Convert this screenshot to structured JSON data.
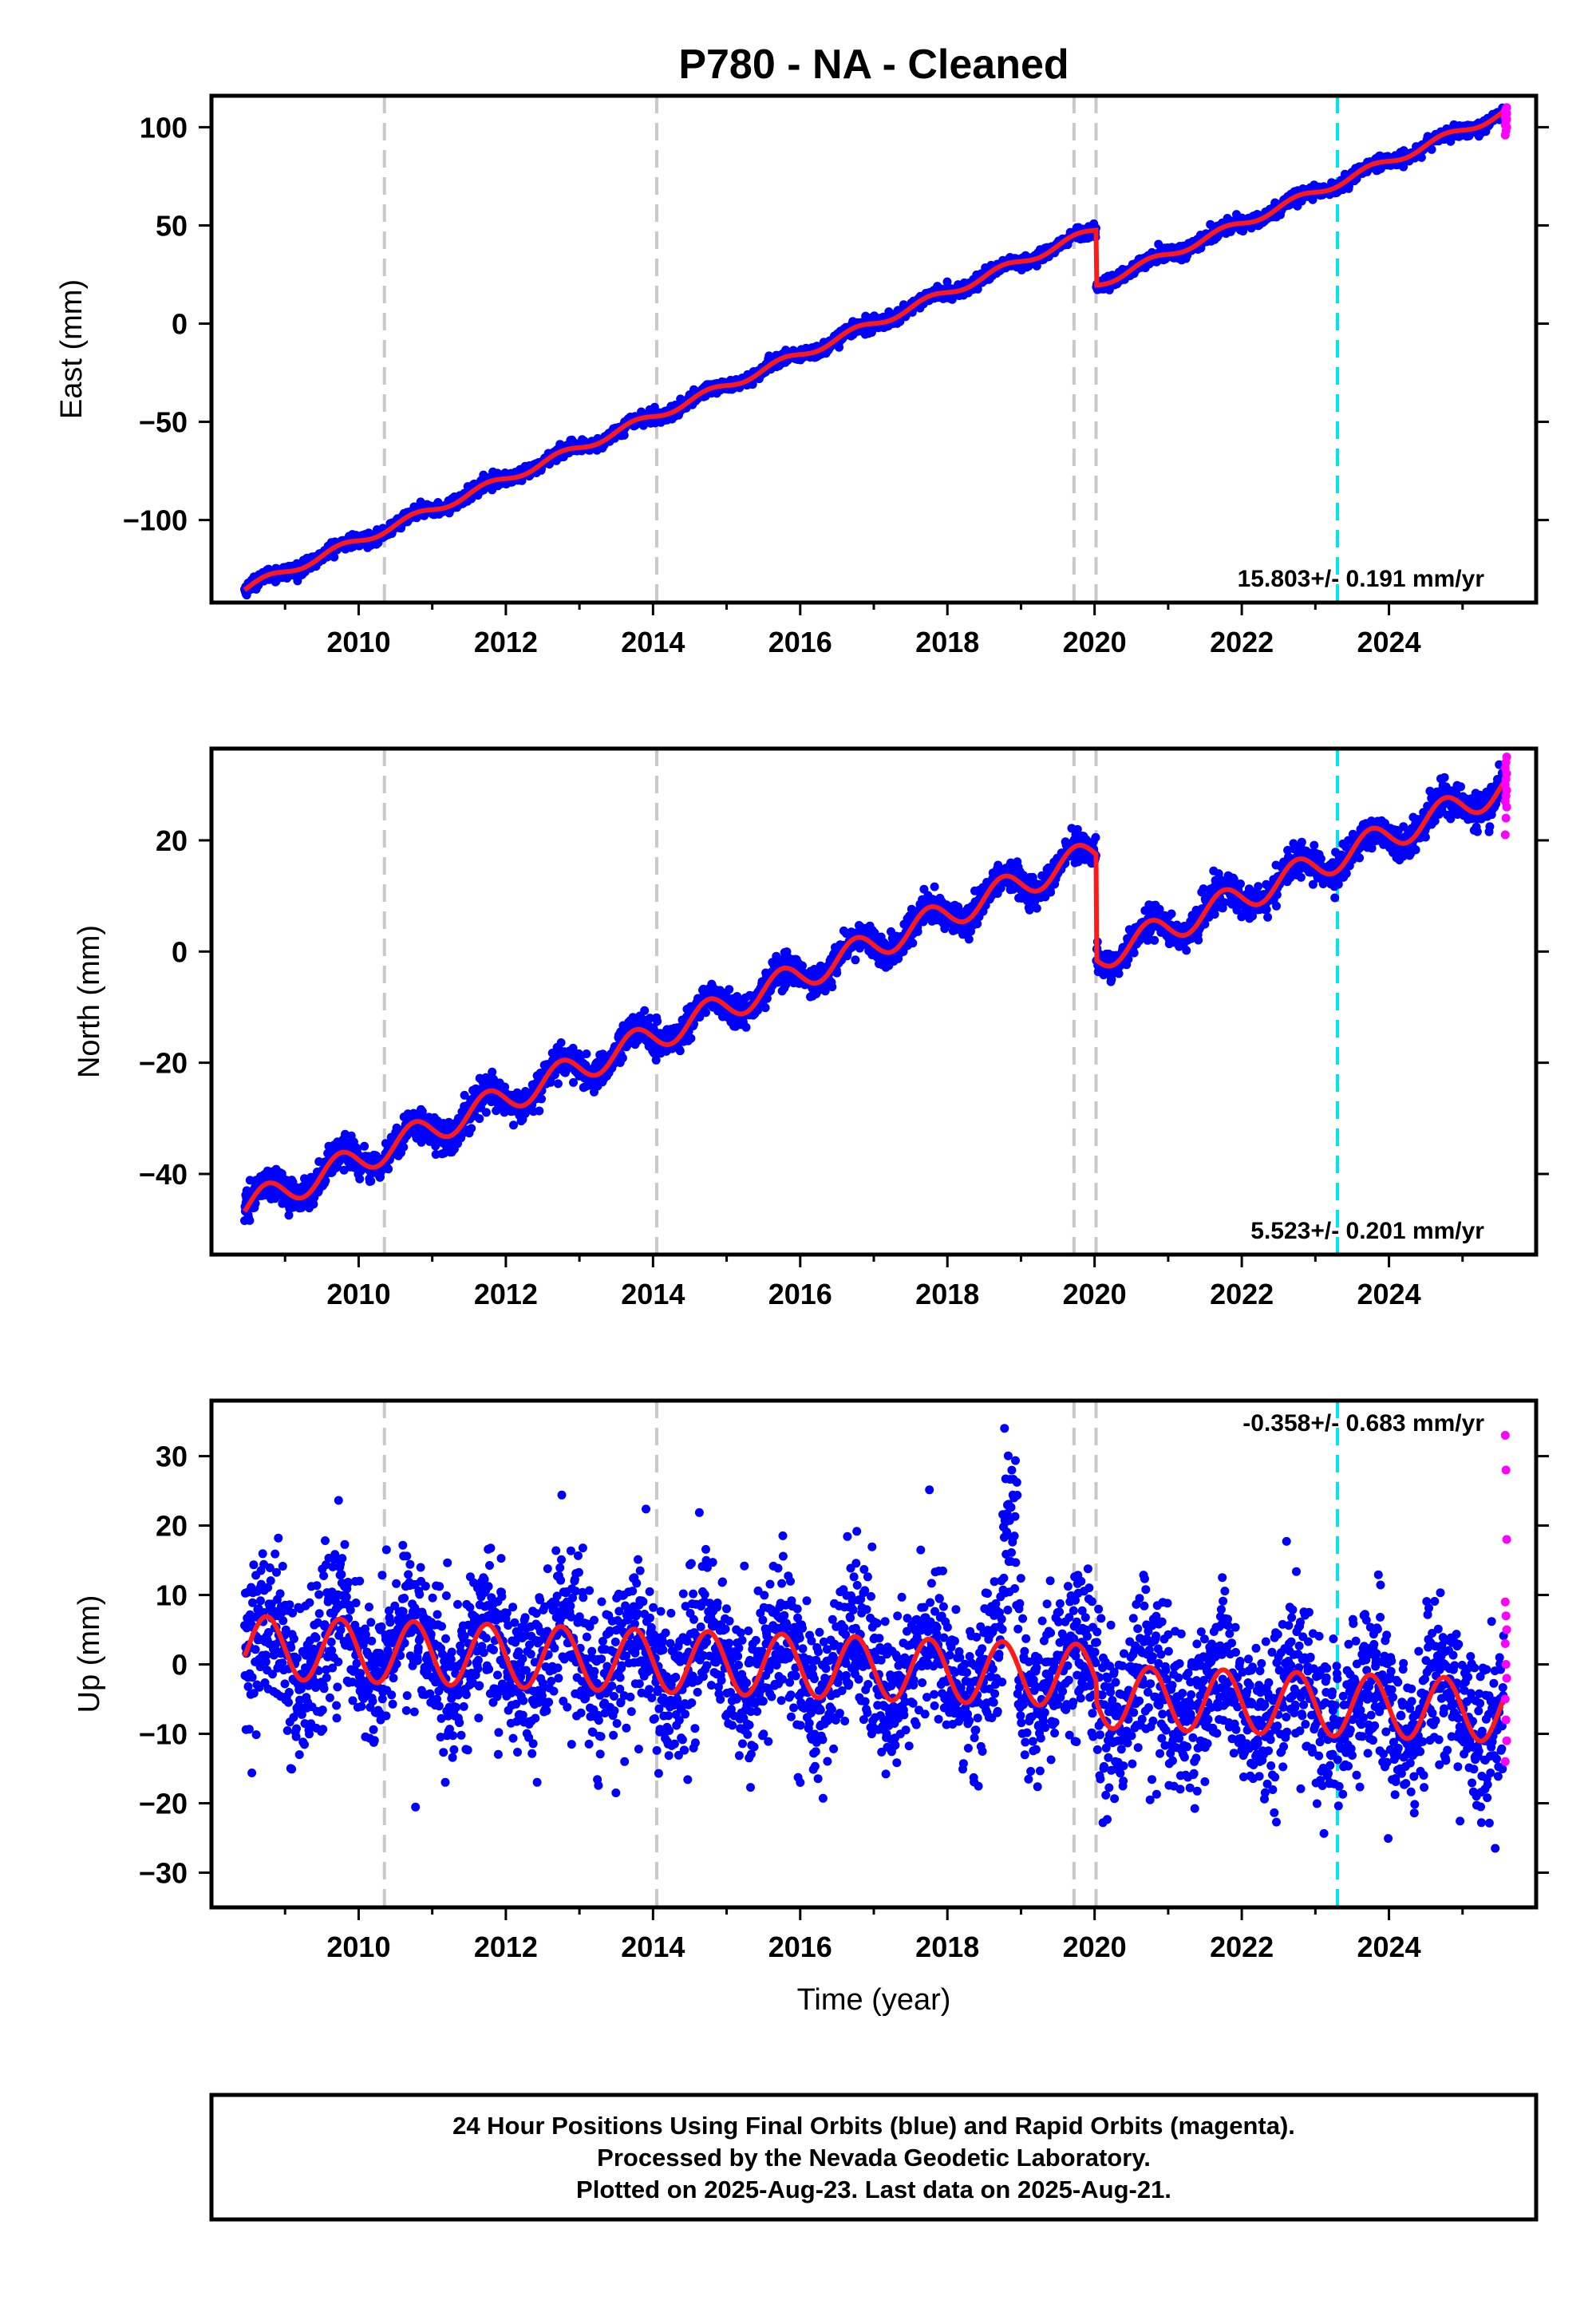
{
  "title": "P780  - NA - Cleaned",
  "x_axis_label": "Time (year)",
  "colors": {
    "final_orbits": "#0000ff",
    "rapid_orbits": "#ff00ff",
    "model": "#ff1a1a",
    "equipment_change": "#c8c8c8",
    "other_event": "#00e5ee"
  },
  "footer": {
    "line1": "24 Hour Positions Using Final Orbits (blue) and Rapid Orbits (magenta).",
    "line2": "Processed by the Nevada Geodetic Laboratory.",
    "line3": "Plotted on 2025-Aug-23. Last data on 2025-Aug-21."
  },
  "chart_data": [
    {
      "type": "scatter",
      "component": "East",
      "ylabel": "East (mm)",
      "xlim": [
        2008.0,
        2026.0
      ],
      "ylim": [
        -142,
        116
      ],
      "xticks": [
        2010,
        2012,
        2014,
        2016,
        2018,
        2020,
        2022,
        2024
      ],
      "yticks": [
        -100,
        -50,
        0,
        50,
        100
      ],
      "rate_label": "15.803+/- 0.191 mm/yr",
      "vertical_lines": [
        {
          "x": 2010.35,
          "kind": "equipment_change"
        },
        {
          "x": 2014.05,
          "kind": "equipment_change"
        },
        {
          "x": 2019.72,
          "kind": "equipment_change"
        },
        {
          "x": 2020.02,
          "kind": "equipment_change"
        },
        {
          "x": 2023.3,
          "kind": "other_event"
        }
      ],
      "series": [
        {
          "kind": "trend",
          "start_x": 2008.45,
          "start_y": -135,
          "rate": 15.8,
          "seasonal_amp": 2,
          "noise": 1.6,
          "offsets": [
            {
              "x": 2020.02,
              "dy": -28
            }
          ],
          "end_x": 2025.56
        }
      ],
      "rapid_points": [
        96,
        98,
        100,
        101,
        103,
        104,
        105,
        106,
        107,
        108,
        109,
        110
      ]
    },
    {
      "type": "scatter",
      "component": "North",
      "ylabel": "North (mm)",
      "xlim": [
        2008.0,
        2026.0
      ],
      "ylim": [
        -54.5,
        36.5
      ],
      "xticks": [
        2010,
        2012,
        2014,
        2016,
        2018,
        2020,
        2022,
        2024
      ],
      "yticks": [
        -40,
        -20,
        0,
        20
      ],
      "rate_label": "5.523+/- 0.201 mm/yr",
      "vertical_lines": [
        {
          "x": 2010.35,
          "kind": "equipment_change"
        },
        {
          "x": 2014.05,
          "kind": "equipment_change"
        },
        {
          "x": 2019.72,
          "kind": "equipment_change"
        },
        {
          "x": 2020.02,
          "kind": "equipment_change"
        },
        {
          "x": 2023.3,
          "kind": "other_event"
        }
      ],
      "series": [
        {
          "kind": "trend",
          "start_x": 2008.45,
          "start_y": -46,
          "rate": 5.52,
          "seasonal_amp": 2.6,
          "noise": 1.4,
          "offsets": [
            {
              "x": 2020.02,
              "dy": -19
            }
          ],
          "end_x": 2025.56
        }
      ],
      "rapid_points": [
        21,
        24,
        26,
        27,
        28,
        29,
        30,
        31,
        32,
        33,
        34,
        35
      ]
    },
    {
      "type": "scatter",
      "component": "Up",
      "ylabel": "Up (mm)",
      "xlim": [
        2008.0,
        2026.0
      ],
      "ylim": [
        -35,
        38
      ],
      "xticks": [
        2010,
        2012,
        2014,
        2016,
        2018,
        2020,
        2022,
        2024
      ],
      "yticks": [
        -30,
        -20,
        -10,
        0,
        10,
        20,
        30
      ],
      "rate_label": "-0.358+/- 0.683 mm/yr",
      "vertical_lines": [
        {
          "x": 2010.35,
          "kind": "equipment_change"
        },
        {
          "x": 2014.05,
          "kind": "equipment_change"
        },
        {
          "x": 2019.72,
          "kind": "equipment_change"
        },
        {
          "x": 2020.02,
          "kind": "equipment_change"
        },
        {
          "x": 2023.3,
          "kind": "other_event"
        }
      ],
      "series": [
        {
          "kind": "trend",
          "start_x": 2008.45,
          "start_y": 2.5,
          "rate": -0.36,
          "seasonal_amp": 4.5,
          "noise": 5.5,
          "offsets": [
            {
              "x": 2020.02,
              "dy": -3
            }
          ],
          "end_x": 2025.56
        }
      ],
      "rapid_points": [
        33,
        28,
        18,
        9,
        7,
        5,
        3,
        0,
        -2,
        -5,
        -8,
        -11,
        -14
      ]
    }
  ]
}
